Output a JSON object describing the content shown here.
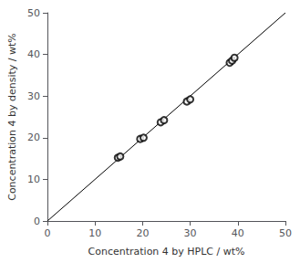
{
  "chart_data": {
    "type": "scatter",
    "xlabel": "Concentration 4 by HPLC / wt%",
    "ylabel": "Concentration 4 by density / wt%",
    "xlim": [
      0,
      50
    ],
    "ylim": [
      0,
      50
    ],
    "xticks": [
      0,
      10,
      20,
      30,
      40,
      50
    ],
    "yticks": [
      0,
      10,
      20,
      30,
      40,
      50
    ],
    "grid": false,
    "series": [
      {
        "type": "line",
        "color": "black",
        "x": [
          0,
          50
        ],
        "values": [
          0,
          50
        ]
      },
      {
        "type": "scatter",
        "color": "black",
        "marker": "emptyCircle",
        "x": [
          14.8,
          15.3,
          19.5,
          20.2,
          23.8,
          24.5,
          29.3,
          30.0,
          38.3,
          38.8,
          39.3
        ],
        "values": [
          15.2,
          15.5,
          19.7,
          20.0,
          23.7,
          24.2,
          28.7,
          29.2,
          38.0,
          38.5,
          39.2
        ]
      }
    ]
  }
}
